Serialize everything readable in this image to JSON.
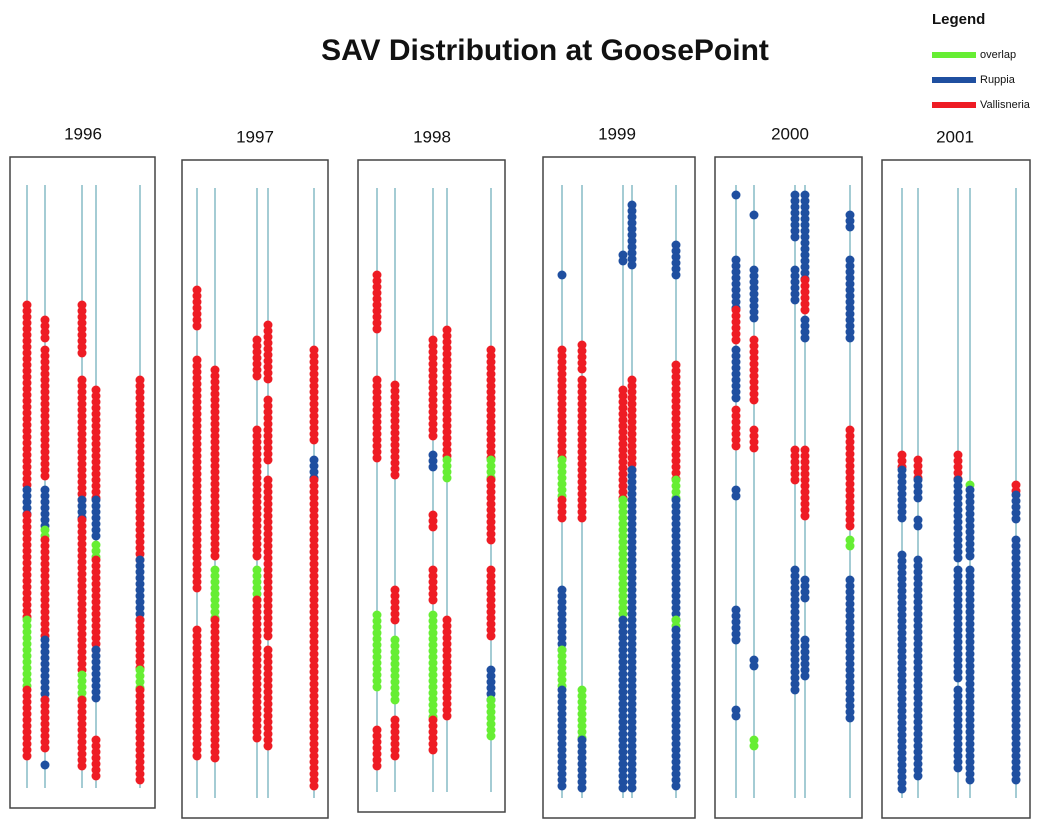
{
  "title": "SAV Distribution at GoosePoint",
  "legend": {
    "title": "Legend",
    "items": [
      {
        "label": "overlap",
        "color": "#66ee33"
      },
      {
        "label": "Ruppia",
        "color": "#1f4fa0"
      },
      {
        "label": "Vallisneria",
        "color": "#ee1c24"
      }
    ]
  },
  "panels": [
    {
      "label": "1996"
    },
    {
      "label": "1997"
    },
    {
      "label": "1998"
    },
    {
      "label": "1999"
    },
    {
      "label": "2000"
    },
    {
      "label": "2001"
    }
  ]
}
